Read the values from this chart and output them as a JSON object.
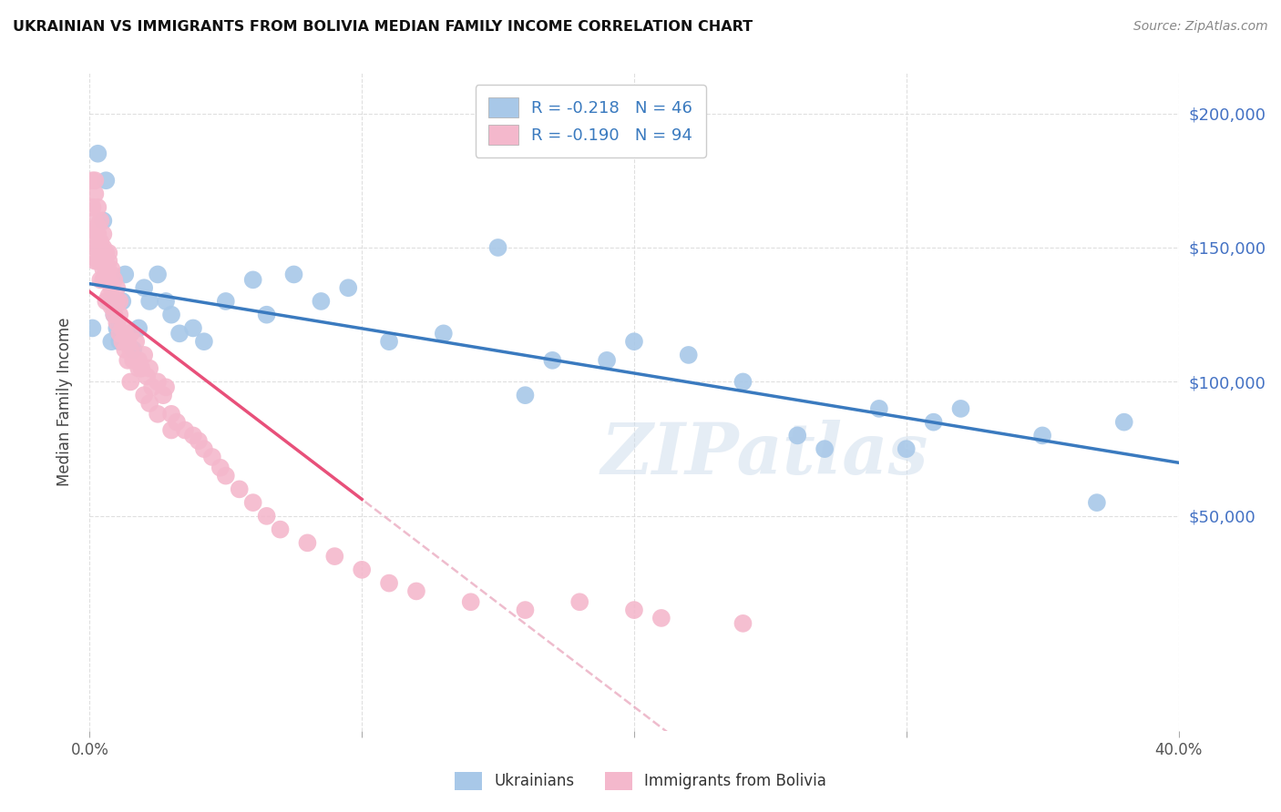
{
  "title": "UKRAINIAN VS IMMIGRANTS FROM BOLIVIA MEDIAN FAMILY INCOME CORRELATION CHART",
  "source": "Source: ZipAtlas.com",
  "ylabel": "Median Family Income",
  "watermark": "ZIPatlas",
  "ukrainian_R": -0.218,
  "ukrainian_N": 46,
  "bolivia_R": -0.19,
  "bolivia_N": 94,
  "ukrainian_color": "#a8c8e8",
  "bolivia_color": "#f4b8cc",
  "ukrainian_line_color": "#3a7abf",
  "bolivia_line_color": "#e8507a",
  "dashed_line_color": "#e8a0b8",
  "legend_text_color": "#3a7abf",
  "legend_R_color": "#3a7abf",
  "yticks": [
    50000,
    100000,
    150000,
    200000
  ],
  "ytick_labels": [
    "$50,000",
    "$100,000",
    "$150,000",
    "$200,000"
  ],
  "ylim": [
    -30000,
    215000
  ],
  "xlim": [
    0,
    0.4
  ],
  "background_color": "#ffffff",
  "grid_color": "#d8d8d8",
  "ukr_scatter_x": [
    0.001,
    0.003,
    0.005,
    0.006,
    0.007,
    0.008,
    0.009,
    0.01,
    0.011,
    0.012,
    0.013,
    0.015,
    0.016,
    0.018,
    0.02,
    0.022,
    0.025,
    0.028,
    0.03,
    0.033,
    0.038,
    0.042,
    0.05,
    0.06,
    0.065,
    0.075,
    0.085,
    0.095,
    0.11,
    0.13,
    0.15,
    0.17,
    0.2,
    0.22,
    0.26,
    0.3,
    0.32,
    0.35,
    0.37,
    0.38,
    0.27,
    0.16,
    0.19,
    0.24,
    0.29,
    0.31
  ],
  "ukr_scatter_y": [
    120000,
    185000,
    160000,
    175000,
    130000,
    115000,
    125000,
    120000,
    115000,
    130000,
    140000,
    118000,
    112000,
    120000,
    135000,
    130000,
    140000,
    130000,
    125000,
    118000,
    120000,
    115000,
    130000,
    138000,
    125000,
    140000,
    130000,
    135000,
    115000,
    118000,
    150000,
    108000,
    115000,
    110000,
    80000,
    75000,
    90000,
    80000,
    55000,
    85000,
    75000,
    95000,
    108000,
    100000,
    90000,
    85000
  ],
  "bol_scatter_x": [
    0.001,
    0.001,
    0.001,
    0.002,
    0.002,
    0.002,
    0.002,
    0.002,
    0.003,
    0.003,
    0.003,
    0.003,
    0.003,
    0.004,
    0.004,
    0.004,
    0.004,
    0.005,
    0.005,
    0.005,
    0.005,
    0.005,
    0.005,
    0.006,
    0.006,
    0.006,
    0.006,
    0.007,
    0.007,
    0.007,
    0.007,
    0.008,
    0.008,
    0.008,
    0.008,
    0.009,
    0.009,
    0.009,
    0.01,
    0.01,
    0.01,
    0.011,
    0.011,
    0.011,
    0.012,
    0.012,
    0.013,
    0.013,
    0.014,
    0.014,
    0.015,
    0.015,
    0.016,
    0.017,
    0.018,
    0.019,
    0.02,
    0.021,
    0.022,
    0.023,
    0.025,
    0.027,
    0.028,
    0.03,
    0.032,
    0.035,
    0.038,
    0.04,
    0.042,
    0.045,
    0.048,
    0.05,
    0.055,
    0.06,
    0.065,
    0.07,
    0.08,
    0.09,
    0.1,
    0.11,
    0.12,
    0.14,
    0.16,
    0.015,
    0.02,
    0.025,
    0.03,
    0.018,
    0.022,
    0.008,
    0.21,
    0.18,
    0.24,
    0.2
  ],
  "bol_scatter_y": [
    175000,
    165000,
    155000,
    170000,
    160000,
    175000,
    150000,
    145000,
    165000,
    158000,
    150000,
    145000,
    155000,
    152000,
    145000,
    138000,
    160000,
    150000,
    148000,
    142000,
    155000,
    138000,
    145000,
    148000,
    138000,
    142000,
    130000,
    145000,
    138000,
    132000,
    148000,
    142000,
    135000,
    128000,
    140000,
    138000,
    130000,
    125000,
    130000,
    122000,
    135000,
    125000,
    118000,
    130000,
    120000,
    115000,
    118000,
    112000,
    115000,
    108000,
    118000,
    112000,
    108000,
    115000,
    108000,
    105000,
    110000,
    102000,
    105000,
    98000,
    100000,
    95000,
    98000,
    88000,
    85000,
    82000,
    80000,
    78000,
    75000,
    72000,
    68000,
    65000,
    60000,
    55000,
    50000,
    45000,
    40000,
    35000,
    30000,
    25000,
    22000,
    18000,
    15000,
    100000,
    95000,
    88000,
    82000,
    105000,
    92000,
    130000,
    12000,
    18000,
    10000,
    15000
  ]
}
